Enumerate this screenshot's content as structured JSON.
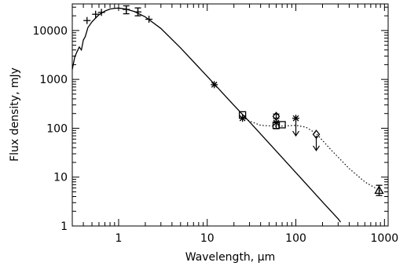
{
  "chart_data": {
    "type": "line",
    "xlabel": "Wavelength, μm",
    "ylabel": "Flux density, mJy",
    "xscale": "log",
    "yscale": "log",
    "xlim": [
      0.3,
      1100
    ],
    "ylim": [
      1,
      35000
    ],
    "x_ticks": [
      {
        "value": 1,
        "label": "1"
      },
      {
        "value": 10,
        "label": "10"
      },
      {
        "value": 100,
        "label": "100"
      },
      {
        "value": 1000,
        "label": "1000"
      }
    ],
    "y_ticks": [
      {
        "value": 1,
        "label": "1"
      },
      {
        "value": 10,
        "label": "10"
      },
      {
        "value": 100,
        "label": "100"
      },
      {
        "value": 1000,
        "label": "1000"
      },
      {
        "value": 10000,
        "label": "10000"
      }
    ],
    "grid": false,
    "colors": {
      "ink": "#000000"
    },
    "series": [
      {
        "style": "solid",
        "x": [
          0.3,
          0.32,
          0.34,
          0.36,
          0.38,
          0.4,
          0.42,
          0.45,
          0.5,
          0.55,
          0.6,
          0.7,
          0.8,
          0.9,
          1.0,
          1.2,
          1.5,
          2.0,
          3.0,
          5.0,
          10,
          20,
          30,
          50,
          100,
          200,
          300,
          320
        ],
        "y": [
          1600,
          2900,
          3700,
          4600,
          4000,
          6400,
          7500,
          11500,
          15000,
          18000,
          21000,
          25000,
          27500,
          28500,
          28800,
          27500,
          24500,
          19000,
          11000,
          4400,
          1150,
          295,
          135,
          49,
          12.4,
          3.1,
          1.4,
          1.2
        ]
      },
      {
        "style": "dotted",
        "x": [
          25,
          30,
          40,
          60,
          80,
          100,
          130,
          170,
          250,
          400,
          600,
          900
        ],
        "y": [
          170,
          140,
          115,
          110,
          112,
          115,
          105,
          78,
          36,
          15,
          8,
          5.2
        ]
      }
    ],
    "points": [
      {
        "x": 0.44,
        "y": 16000,
        "marker": "plus"
      },
      {
        "x": 0.55,
        "y": 21500,
        "marker": "plus"
      },
      {
        "x": 0.64,
        "y": 23500,
        "marker": "plus"
      },
      {
        "x": 1.22,
        "y": 27000,
        "marker": "plus",
        "err": [
          22000,
          32000
        ]
      },
      {
        "x": 1.65,
        "y": 24000,
        "marker": "plus",
        "err": [
          20000,
          29000
        ]
      },
      {
        "x": 2.2,
        "y": 17000,
        "marker": "plus"
      },
      {
        "x": 12,
        "y": 780,
        "marker": "asterisk"
      },
      {
        "x": 25,
        "y": 160,
        "marker": "asterisk"
      },
      {
        "x": 60,
        "y": 130,
        "marker": "asterisk"
      },
      {
        "x": 100,
        "y": 160,
        "marker": "asterisk"
      },
      {
        "x": 25,
        "y": 188,
        "marker": "square"
      },
      {
        "x": 60,
        "y": 115,
        "marker": "square",
        "err": [
          98,
          135
        ]
      },
      {
        "x": 70,
        "y": 118,
        "marker": "square"
      },
      {
        "x": 60,
        "y": 175,
        "marker": "diamond",
        "err": [
          160,
          195
        ]
      },
      {
        "x": 170,
        "y": 75,
        "marker": "diamond"
      },
      {
        "x": 870,
        "y": 5.4,
        "marker": "triangle",
        "err": [
          4.2,
          6.8
        ]
      }
    ],
    "upper_limits": [
      {
        "x": 100,
        "y": 140,
        "to": 70
      },
      {
        "x": 170,
        "y": 70,
        "to": 35
      }
    ]
  }
}
